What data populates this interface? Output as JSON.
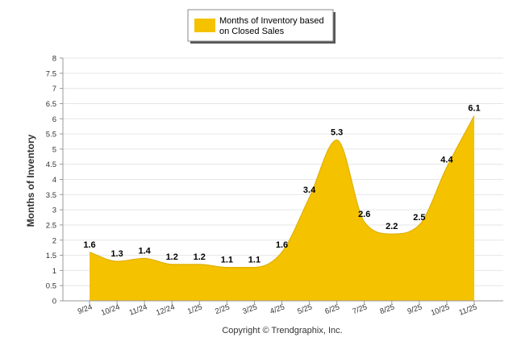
{
  "chart_data": {
    "type": "area",
    "legend": {
      "line1": "Months of Inventory based",
      "line2": "on Closed Sales",
      "color": "#F5C200",
      "placement": "top-center"
    },
    "ylabel": "Months of Inventory",
    "xlabel": "",
    "ylim": [
      0,
      8
    ],
    "yticks": [
      "0",
      "0.5",
      "1",
      "1.5",
      "2",
      "2.5",
      "3",
      "3.5",
      "4",
      "4.5",
      "5",
      "5.5",
      "6",
      "6.5",
      "7",
      "7.5",
      "8"
    ],
    "categories": [
      "9/24",
      "10/24",
      "11/24",
      "12/24",
      "1/25",
      "2/25",
      "3/25",
      "4/25",
      "5/25",
      "6/25",
      "7/25",
      "8/25",
      "9/25",
      "10/25",
      "11/25"
    ],
    "values": [
      1.6,
      1.3,
      1.4,
      1.2,
      1.2,
      1.1,
      1.1,
      1.6,
      3.4,
      5.3,
      2.6,
      2.2,
      2.5,
      4.4,
      6.1
    ],
    "labels": [
      "1.6",
      "1.3",
      "1.4",
      "1.2",
      "1.2",
      "1.1",
      "1.1",
      "1.6",
      "3.4",
      "5.3",
      "2.6",
      "2.2",
      "2.5",
      "4.4",
      "6.1"
    ],
    "fill_color": "#F5C200",
    "grid": true
  },
  "footer": {
    "copyright": "Copyright © Trendgraphix, Inc."
  }
}
